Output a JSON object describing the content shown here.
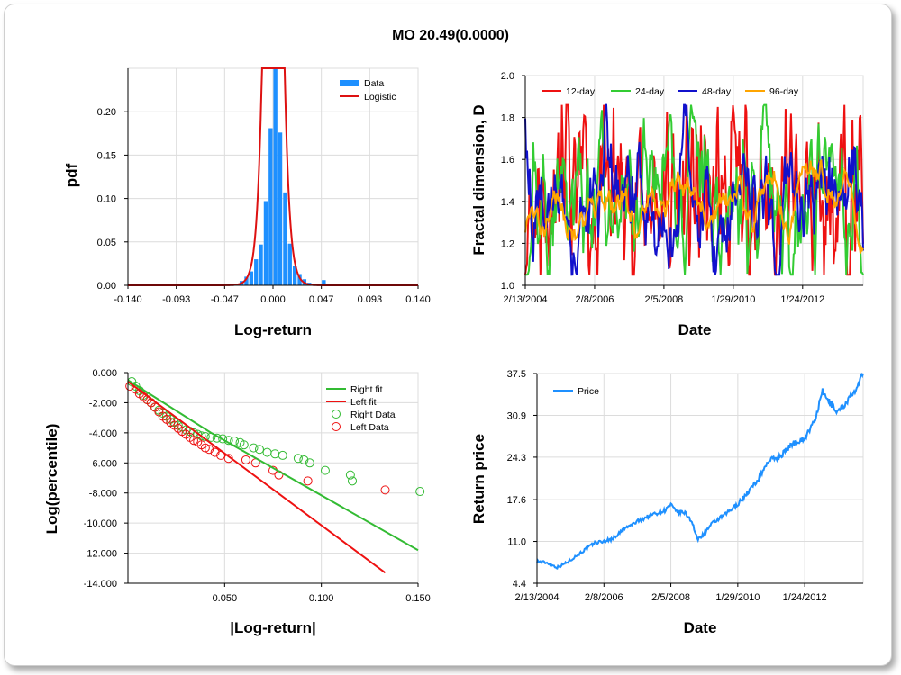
{
  "title": "MO 20.49(0.0000)",
  "colors": {
    "data_bar": "#1E90FF",
    "logistic": "#DD1111",
    "right": "#33BB33",
    "left": "#EE1111",
    "d12": "#EE1111",
    "d24": "#33CC33",
    "d48": "#1111CC",
    "d96": "#FFA500",
    "price": "#1E90FF"
  },
  "chart_data": [
    {
      "id": "pdf",
      "type": "bar",
      "xlabel": "Log-return",
      "ylabel": "pdf",
      "xlim": [
        -0.14,
        0.14
      ],
      "ylim": [
        0,
        0.25
      ],
      "xticks": [
        "-0.140",
        "-0.093",
        "-0.047",
        "0.000",
        "0.047",
        "0.093",
        "0.140"
      ],
      "yticks": [
        "0.00",
        "0.05",
        "0.10",
        "0.15",
        "0.20"
      ],
      "legend": [
        "Data",
        "Logistic"
      ],
      "bin_width": 0.00467,
      "bins": [
        [
          -0.0817,
          0.0003
        ],
        [
          -0.0677,
          0.0003
        ],
        [
          -0.049,
          0.0004
        ],
        [
          -0.0397,
          0.001
        ],
        [
          -0.035,
          0.002
        ],
        [
          -0.0303,
          0.005
        ],
        [
          -0.0257,
          0.01
        ],
        [
          -0.021,
          0.016
        ],
        [
          -0.0163,
          0.03
        ],
        [
          -0.0117,
          0.047
        ],
        [
          -0.007,
          0.097
        ],
        [
          -0.0023,
          0.181
        ],
        [
          0.0023,
          0.255
        ],
        [
          0.007,
          0.176
        ],
        [
          0.0117,
          0.107
        ],
        [
          0.0163,
          0.048
        ],
        [
          0.021,
          0.022
        ],
        [
          0.0257,
          0.013
        ],
        [
          0.0303,
          0.007
        ],
        [
          0.035,
          0.003
        ],
        [
          0.0397,
          0.002
        ],
        [
          0.0443,
          0.001
        ],
        [
          0.049,
          0.006
        ],
        [
          0.0583,
          0.0015
        ],
        [
          0.0723,
          0.0005
        ],
        [
          0.0863,
          0.0004
        ]
      ],
      "fit": {
        "mu": 0.0003,
        "s": 0.00415
      }
    },
    {
      "id": "fractal",
      "type": "line",
      "xlabel": "Date",
      "ylabel": "Fractal dimension, D",
      "xlim": [
        0,
        2422
      ],
      "ylim": [
        1.0,
        2.0
      ],
      "xticks": [
        {
          "v": 0,
          "label": "2/13/2004"
        },
        {
          "v": 497,
          "label": "2/8/2006"
        },
        {
          "v": 994,
          "label": "2/5/2008"
        },
        {
          "v": 1491,
          "label": "1/29/2010"
        },
        {
          "v": 1988,
          "label": "1/24/2012"
        }
      ],
      "yticks": [
        "1.0",
        "1.2",
        "1.4",
        "1.6",
        "1.8",
        "2.0"
      ],
      "series": [
        {
          "name": "12-day",
          "color_key": "d12",
          "noise": 0.22,
          "smooth": 1,
          "mean": 1.43,
          "seed": 11
        },
        {
          "name": "24-day",
          "color_key": "d24",
          "noise": 0.2,
          "smooth": 2,
          "mean": 1.42,
          "seed": 23
        },
        {
          "name": "48-day",
          "color_key": "d48",
          "noise": 0.16,
          "smooth": 4,
          "mean": 1.4,
          "seed": 37
        },
        {
          "name": "96-day",
          "color_key": "d96",
          "noise": 0.09,
          "smooth": 7,
          "mean": 1.39,
          "seed": 51
        }
      ]
    },
    {
      "id": "tail",
      "type": "scatter",
      "xlabel": "|Log-return|",
      "ylabel": "Log(percentile)",
      "xlim": [
        0,
        0.15
      ],
      "ylim": [
        -14,
        0
      ],
      "xticks": [
        {
          "v": 0.05,
          "label": "0.050"
        },
        {
          "v": 0.1,
          "label": "0.100"
        },
        {
          "v": 0.15,
          "label": "0.150"
        }
      ],
      "yticks": [
        "0.000",
        "-2.000",
        "-4.000",
        "-6.000",
        "-8.000",
        "-10.000",
        "-12.000",
        "-14.000"
      ],
      "legend": [
        "Right fit",
        "Left fit",
        "Right Data",
        "Left Data"
      ],
      "right_fit": [
        [
          0.0,
          -0.5
        ],
        [
          0.043,
          -4.0
        ],
        [
          0.15,
          -11.8
        ]
      ],
      "left_fit": [
        [
          0.0,
          -0.6
        ],
        [
          0.133,
          -13.3
        ]
      ],
      "right_data": [
        [
          0.002,
          -0.6
        ],
        [
          0.004,
          -0.9
        ],
        [
          0.006,
          -1.2
        ],
        [
          0.008,
          -1.5
        ],
        [
          0.01,
          -1.8
        ],
        [
          0.012,
          -2.0
        ],
        [
          0.014,
          -2.3
        ],
        [
          0.016,
          -2.5
        ],
        [
          0.018,
          -2.7
        ],
        [
          0.02,
          -2.9
        ],
        [
          0.022,
          -3.1
        ],
        [
          0.024,
          -3.3
        ],
        [
          0.026,
          -3.5
        ],
        [
          0.028,
          -3.6
        ],
        [
          0.03,
          -3.8
        ],
        [
          0.032,
          -3.9
        ],
        [
          0.034,
          -4.0
        ],
        [
          0.036,
          -4.1
        ],
        [
          0.038,
          -4.2
        ],
        [
          0.04,
          -4.25
        ],
        [
          0.043,
          -4.3
        ],
        [
          0.046,
          -4.35
        ],
        [
          0.049,
          -4.4
        ],
        [
          0.052,
          -4.5
        ],
        [
          0.055,
          -4.55
        ],
        [
          0.058,
          -4.65
        ],
        [
          0.06,
          -4.8
        ],
        [
          0.065,
          -5.0
        ],
        [
          0.068,
          -5.1
        ],
        [
          0.072,
          -5.3
        ],
        [
          0.076,
          -5.4
        ],
        [
          0.08,
          -5.5
        ],
        [
          0.088,
          -5.7
        ],
        [
          0.091,
          -5.8
        ],
        [
          0.094,
          -6.0
        ],
        [
          0.102,
          -6.5
        ],
        [
          0.115,
          -6.8
        ],
        [
          0.116,
          -7.2
        ],
        [
          0.151,
          -7.9
        ]
      ],
      "left_data": [
        [
          0.001,
          -0.9
        ],
        [
          0.004,
          -1.1
        ],
        [
          0.006,
          -1.4
        ],
        [
          0.008,
          -1.6
        ],
        [
          0.01,
          -1.8
        ],
        [
          0.012,
          -2.0
        ],
        [
          0.014,
          -2.3
        ],
        [
          0.016,
          -2.6
        ],
        [
          0.018,
          -2.9
        ],
        [
          0.02,
          -3.1
        ],
        [
          0.022,
          -3.3
        ],
        [
          0.024,
          -3.5
        ],
        [
          0.026,
          -3.7
        ],
        [
          0.028,
          -3.9
        ],
        [
          0.03,
          -4.1
        ],
        [
          0.032,
          -4.3
        ],
        [
          0.034,
          -4.5
        ],
        [
          0.036,
          -4.6
        ],
        [
          0.038,
          -4.8
        ],
        [
          0.04,
          -5.0
        ],
        [
          0.042,
          -5.1
        ],
        [
          0.045,
          -5.3
        ],
        [
          0.048,
          -5.5
        ],
        [
          0.052,
          -5.7
        ],
        [
          0.061,
          -5.8
        ],
        [
          0.066,
          -6.0
        ],
        [
          0.075,
          -6.5
        ],
        [
          0.078,
          -6.8
        ],
        [
          0.093,
          -7.2
        ],
        [
          0.133,
          -7.8
        ]
      ]
    },
    {
      "id": "price",
      "type": "line",
      "xlabel": "Date",
      "ylabel": "Return price",
      "xlim": [
        0,
        2422
      ],
      "ylim": [
        4.4,
        37.5
      ],
      "xticks": [
        {
          "v": 0,
          "label": "2/13/2004"
        },
        {
          "v": 497,
          "label": "2/8/2006"
        },
        {
          "v": 994,
          "label": "2/5/2008"
        },
        {
          "v": 1491,
          "label": "1/29/2010"
        },
        {
          "v": 1988,
          "label": "1/24/2012"
        }
      ],
      "yticks": [
        "4.4",
        "11.0",
        "17.6",
        "24.3",
        "30.9",
        "37.5"
      ],
      "legend": [
        "Price"
      ],
      "anchors": [
        [
          0,
          7.9
        ],
        [
          80,
          7.6
        ],
        [
          150,
          6.9
        ],
        [
          230,
          7.8
        ],
        [
          330,
          9.3
        ],
        [
          430,
          10.8
        ],
        [
          497,
          11.0
        ],
        [
          560,
          11.4
        ],
        [
          650,
          13.0
        ],
        [
          750,
          14.2
        ],
        [
          850,
          15.2
        ],
        [
          950,
          15.9
        ],
        [
          994,
          16.8
        ],
        [
          1030,
          15.7
        ],
        [
          1100,
          15.5
        ],
        [
          1150,
          14.2
        ],
        [
          1190,
          11.3
        ],
        [
          1230,
          12.0
        ],
        [
          1300,
          13.8
        ],
        [
          1400,
          15.3
        ],
        [
          1491,
          16.9
        ],
        [
          1560,
          18.6
        ],
        [
          1640,
          20.7
        ],
        [
          1720,
          23.8
        ],
        [
          1800,
          24.3
        ],
        [
          1900,
          26.5
        ],
        [
          1988,
          27.3
        ],
        [
          2060,
          29.9
        ],
        [
          2120,
          34.6
        ],
        [
          2170,
          33.0
        ],
        [
          2230,
          31.5
        ],
        [
          2280,
          32.5
        ],
        [
          2330,
          33.9
        ],
        [
          2380,
          35.1
        ],
        [
          2422,
          37.8
        ]
      ]
    }
  ]
}
